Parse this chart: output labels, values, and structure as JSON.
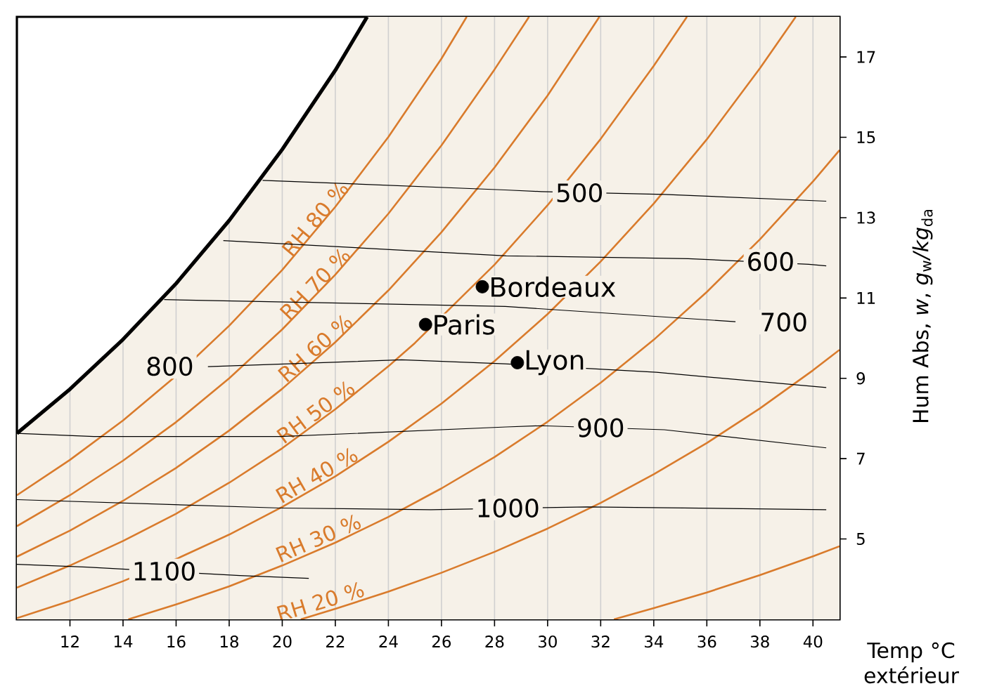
{
  "chart_data": {
    "type": "line",
    "xlabel": "Temp °C extérieur",
    "ylabel": "Hum Abs, *w*, *g*$_{w}$*/kg*$_{da}$",
    "xlim": [
      10,
      41
    ],
    "ylim": [
      3,
      18
    ],
    "xticks": [
      12,
      14,
      16,
      18,
      20,
      22,
      24,
      26,
      28,
      30,
      32,
      34,
      36,
      38,
      40
    ],
    "yticks": [
      5,
      7,
      9,
      11,
      13,
      15,
      17
    ],
    "grid": "x",
    "annotations": [
      {
        "text": "500",
        "x": 31.2,
        "y": 13.62
      },
      {
        "text": "600",
        "x": 38.4,
        "y": 11.91
      },
      {
        "text": "700",
        "x": 38.9,
        "y": 10.4
      },
      {
        "text": "800",
        "x": 15.76,
        "y": 9.3
      },
      {
        "text": "900",
        "x": 32.0,
        "y": 7.77
      },
      {
        "text": "1000",
        "x": 28.5,
        "y": 5.77
      },
      {
        "text": "1100",
        "x": 15.55,
        "y": 4.2
      }
    ],
    "series": [
      {
        "color": "#000000",
        "x": [
          10,
          12,
          14,
          16,
          18,
          20,
          22,
          23.2
        ],
        "values": [
          7.63,
          8.73,
          9.97,
          11.36,
          12.93,
          14.7,
          16.67,
          18
        ]
      },
      {
        "name": "RH 80 %",
        "color": "#d97b2c",
        "x": [
          10,
          12,
          14,
          16,
          18,
          20,
          22,
          24,
          26,
          26.95
        ],
        "values": [
          6.09,
          6.97,
          7.95,
          9.06,
          10.31,
          11.7,
          13.27,
          15.01,
          16.96,
          18
        ]
      },
      {
        "name": "RH 70 %",
        "color": "#d97b2c",
        "x": [
          10,
          12,
          14,
          16,
          18,
          20,
          22,
          24,
          26,
          28,
          29.3
        ],
        "values": [
          5.32,
          6.09,
          6.95,
          7.91,
          9.0,
          10.22,
          11.58,
          13.1,
          14.8,
          16.69,
          18
        ]
      },
      {
        "name": "RH 60 %",
        "color": "#d97b2c",
        "x": [
          10,
          12,
          14,
          16,
          18,
          20,
          22,
          24,
          26,
          28,
          30,
          31.95
        ],
        "values": [
          4.56,
          5.21,
          5.95,
          6.77,
          7.7,
          8.74,
          9.9,
          11.19,
          12.64,
          14.25,
          16.04,
          18
        ]
      },
      {
        "name": "RH 50 %",
        "color": "#d97b2c",
        "x": [
          10,
          12,
          14,
          16,
          18,
          20,
          22,
          24,
          25,
          28,
          30,
          32,
          34,
          35.25
        ],
        "values": [
          3.79,
          4.34,
          4.95,
          5.63,
          6.4,
          7.26,
          8.23,
          9.3,
          9.88,
          11.83,
          13.31,
          14.96,
          16.78,
          18
        ]
      },
      {
        "name": "RH 40 %",
        "color": "#d97b2c",
        "x": [
          10,
          12,
          14,
          16,
          18,
          20,
          22,
          24,
          26,
          28,
          30,
          32,
          34,
          36,
          38,
          39.35
        ],
        "values": [
          3.03,
          3.46,
          3.95,
          4.5,
          5.11,
          5.8,
          6.56,
          7.42,
          8.37,
          9.43,
          10.6,
          11.91,
          13.35,
          14.95,
          16.72,
          18
        ]
      },
      {
        "name": "RH 30 %",
        "color": "#d97b2c",
        "x": [
          14.2,
          16,
          18,
          20,
          22,
          24,
          26,
          28,
          30,
          32,
          34,
          36,
          38,
          40,
          41
        ],
        "values": [
          3,
          3.37,
          3.82,
          4.34,
          4.91,
          5.55,
          6.26,
          7.04,
          7.92,
          8.89,
          9.96,
          11.15,
          12.46,
          13.9,
          14.68
        ]
      },
      {
        "name": "RH 20 %",
        "color": "#d97b2c",
        "x": [
          20.7,
          22,
          24,
          26,
          28,
          30,
          32,
          34,
          36,
          38,
          40,
          41
        ],
        "values": [
          3,
          3.26,
          3.69,
          4.16,
          4.68,
          5.26,
          5.9,
          6.61,
          7.39,
          8.25,
          9.2,
          9.71
        ]
      },
      {
        "color": "#d97b2c",
        "x": [
          32.5,
          34,
          36,
          38,
          40,
          41
        ],
        "values": [
          3,
          3.28,
          3.67,
          4.1,
          4.57,
          4.82
        ]
      },
      {
        "color": "#000000",
        "x": [
          19.26,
          28.4,
          29.76,
          34.4,
          40.5
        ],
        "values": [
          13.93,
          13.69,
          13.65,
          13.58,
          13.41
        ]
      },
      {
        "color": "#000000",
        "x": [
          17.78,
          28.44,
          35.3,
          39.84,
          40.5
        ],
        "values": [
          12.43,
          12.05,
          11.98,
          11.84,
          11.8
        ]
      },
      {
        "color": "#000000",
        "x": [
          15.55,
          28.4,
          37.08
        ],
        "values": [
          10.96,
          10.79,
          10.41
        ]
      },
      {
        "color": "#000000",
        "x": [
          17.2,
          24.5,
          28.4,
          34.1,
          40.5
        ],
        "values": [
          9.29,
          9.46,
          9.36,
          9.15,
          8.77
        ]
      },
      {
        "color": "#000000",
        "x": [
          10,
          12.9,
          19.95,
          28.44,
          29.76,
          34.4,
          40.5
        ],
        "values": [
          7.63,
          7.55,
          7.55,
          7.79,
          7.82,
          7.72,
          7.27
        ]
      },
      {
        "color": "#000000",
        "x": [
          10,
          19.95,
          25.6,
          31.5,
          40.5
        ],
        "values": [
          5.98,
          5.77,
          5.73,
          5.8,
          5.73
        ]
      },
      {
        "color": "#000000",
        "x": [
          10,
          12.65,
          18.4,
          21.0
        ],
        "values": [
          4.37,
          4.3,
          4.09,
          4.02
        ]
      },
      {
        "type": "scatter",
        "name": "Bordeaux",
        "color": "#000000",
        "x": [
          27.54
        ],
        "values": [
          11.28
        ]
      },
      {
        "type": "scatter",
        "name": "Paris",
        "color": "#000000",
        "x": [
          25.4
        ],
        "values": [
          10.34
        ]
      },
      {
        "type": "scatter",
        "name": "Lyon",
        "color": "#000000",
        "x": [
          28.86
        ],
        "values": [
          9.39
        ]
      }
    ]
  }
}
